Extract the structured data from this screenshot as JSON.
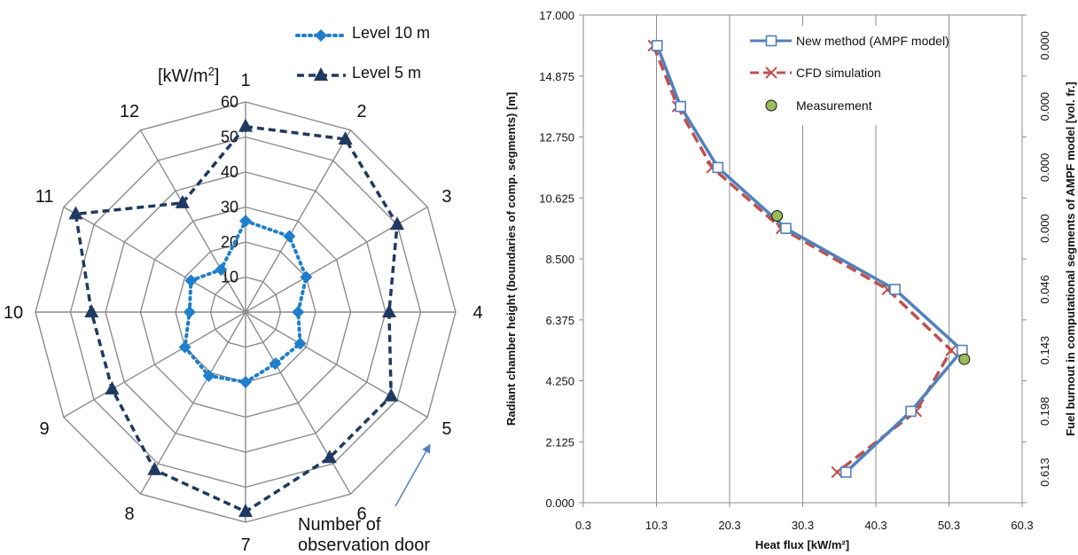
{
  "colors": {
    "level10": "#1F7FCB",
    "level5": "#1F3A60",
    "new_method": "#4F81BD",
    "cfd": "#C0504D",
    "measurement_fill": "#9BBB59",
    "grid": "#8C8C8C"
  },
  "chart_data": [
    {
      "type": "radar",
      "unit_label": "[kW/m",
      "unit_sup": "2",
      "unit_close": "]",
      "categories": [
        "1",
        "2",
        "3",
        "4",
        "5",
        "6",
        "7",
        "8",
        "9",
        "10",
        "11",
        "12"
      ],
      "rlim": [
        0,
        60
      ],
      "rticks": [
        10,
        20,
        30,
        40,
        50,
        60
      ],
      "series": [
        {
          "name": "Level 10 m",
          "marker": "diamond",
          "line": "dotted",
          "values": [
            26,
            25,
            20,
            15,
            18,
            17,
            20,
            21,
            20,
            16,
            18,
            14
          ]
        },
        {
          "name": "Level 5 m",
          "marker": "triangle",
          "line": "dashed",
          "values": [
            53,
            57,
            50,
            41,
            48,
            48,
            57,
            52,
            44,
            44,
            56,
            36
          ]
        }
      ],
      "annotation": "Number of observation door",
      "annotation_lines": [
        "Number of",
        "observation door"
      ],
      "legend": "top"
    },
    {
      "type": "line",
      "xlabel": "Heat flux [kW/m²]",
      "ylabel": "Radiant chamber height (boundaries of comp. segments) [m]",
      "y2label": "Fuel burnout in computational segments of AMPF model [vol. fr.]",
      "xlim": [
        0.3,
        60.3
      ],
      "ylim": [
        0,
        17
      ],
      "xticks": [
        "0.3",
        "10.3",
        "20.3",
        "30.3",
        "40.3",
        "50.3",
        "60.3"
      ],
      "yticks": [
        "0.000",
        "2.125",
        "4.250",
        "6.375",
        "8.500",
        "10.625",
        "12.750",
        "14.875",
        "17.000"
      ],
      "y2_labels": [
        {
          "y": 1.0625,
          "label": "0.613"
        },
        {
          "y": 3.1875,
          "label": "0.198"
        },
        {
          "y": 5.3125,
          "label": "0.143"
        },
        {
          "y": 7.4375,
          "label": "0.046"
        },
        {
          "y": 9.5625,
          "label": "0.000"
        },
        {
          "y": 11.6875,
          "label": "0.000"
        },
        {
          "y": 13.8125,
          "label": "0.000"
        },
        {
          "y": 15.9375,
          "label": "0.000"
        }
      ],
      "series": [
        {
          "name": "New method (AMPF model)",
          "marker": "square",
          "line": "solid",
          "x": [
            10.4,
            13.6,
            18.7,
            28.0,
            42.9,
            52.1,
            45.1,
            36.2
          ],
          "y": [
            15.9375,
            13.8125,
            11.6875,
            9.5625,
            7.4375,
            5.3125,
            3.1875,
            1.0625
          ]
        },
        {
          "name": "CFD simulation",
          "marker": "x",
          "line": "dashed",
          "x": [
            9.9,
            13.2,
            17.9,
            27.4,
            41.9,
            50.6,
            45.8,
            35.0
          ],
          "y": [
            15.9375,
            13.8125,
            11.6875,
            9.5625,
            7.4375,
            5.3125,
            3.1875,
            1.0625
          ]
        },
        {
          "name": "Measurement",
          "marker": "circle",
          "line": "none",
          "x": [
            26.8,
            52.4
          ],
          "y": [
            10.0,
            5.0
          ]
        }
      ],
      "grid": "vertical",
      "legend": "top-right"
    }
  ]
}
